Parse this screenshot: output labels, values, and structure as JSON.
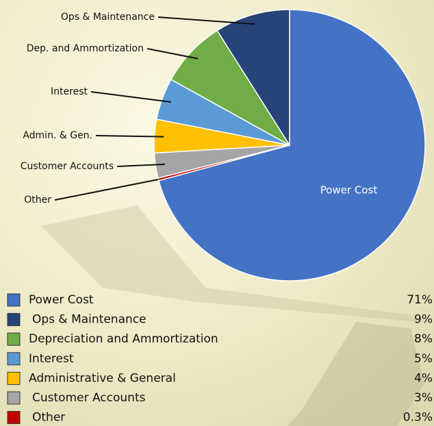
{
  "chart_data": {
    "type": "pie",
    "categories": [
      "Power Cost",
      "Ops & Maintenance",
      "Depreciation and Ammortization",
      "Interest",
      "Administrative & General",
      "Customer Accounts",
      "Other"
    ],
    "callout_labels": [
      "Power Cost",
      "Ops & Maintenance",
      "Dep. and Ammortization",
      "Interest",
      "Admin. & Gen.",
      "Customer Accounts",
      "Other"
    ],
    "values": [
      71,
      9,
      8,
      5,
      4,
      3,
      0.3
    ],
    "value_labels": [
      "71%",
      "9%",
      "8%",
      "5%",
      "4%",
      "3%",
      "0.3%"
    ],
    "colors": [
      "#4472c4",
      "#264478",
      "#70ad47",
      "#5b9bd5",
      "#ffc000",
      "#a5a5a5",
      "#c00000"
    ]
  }
}
